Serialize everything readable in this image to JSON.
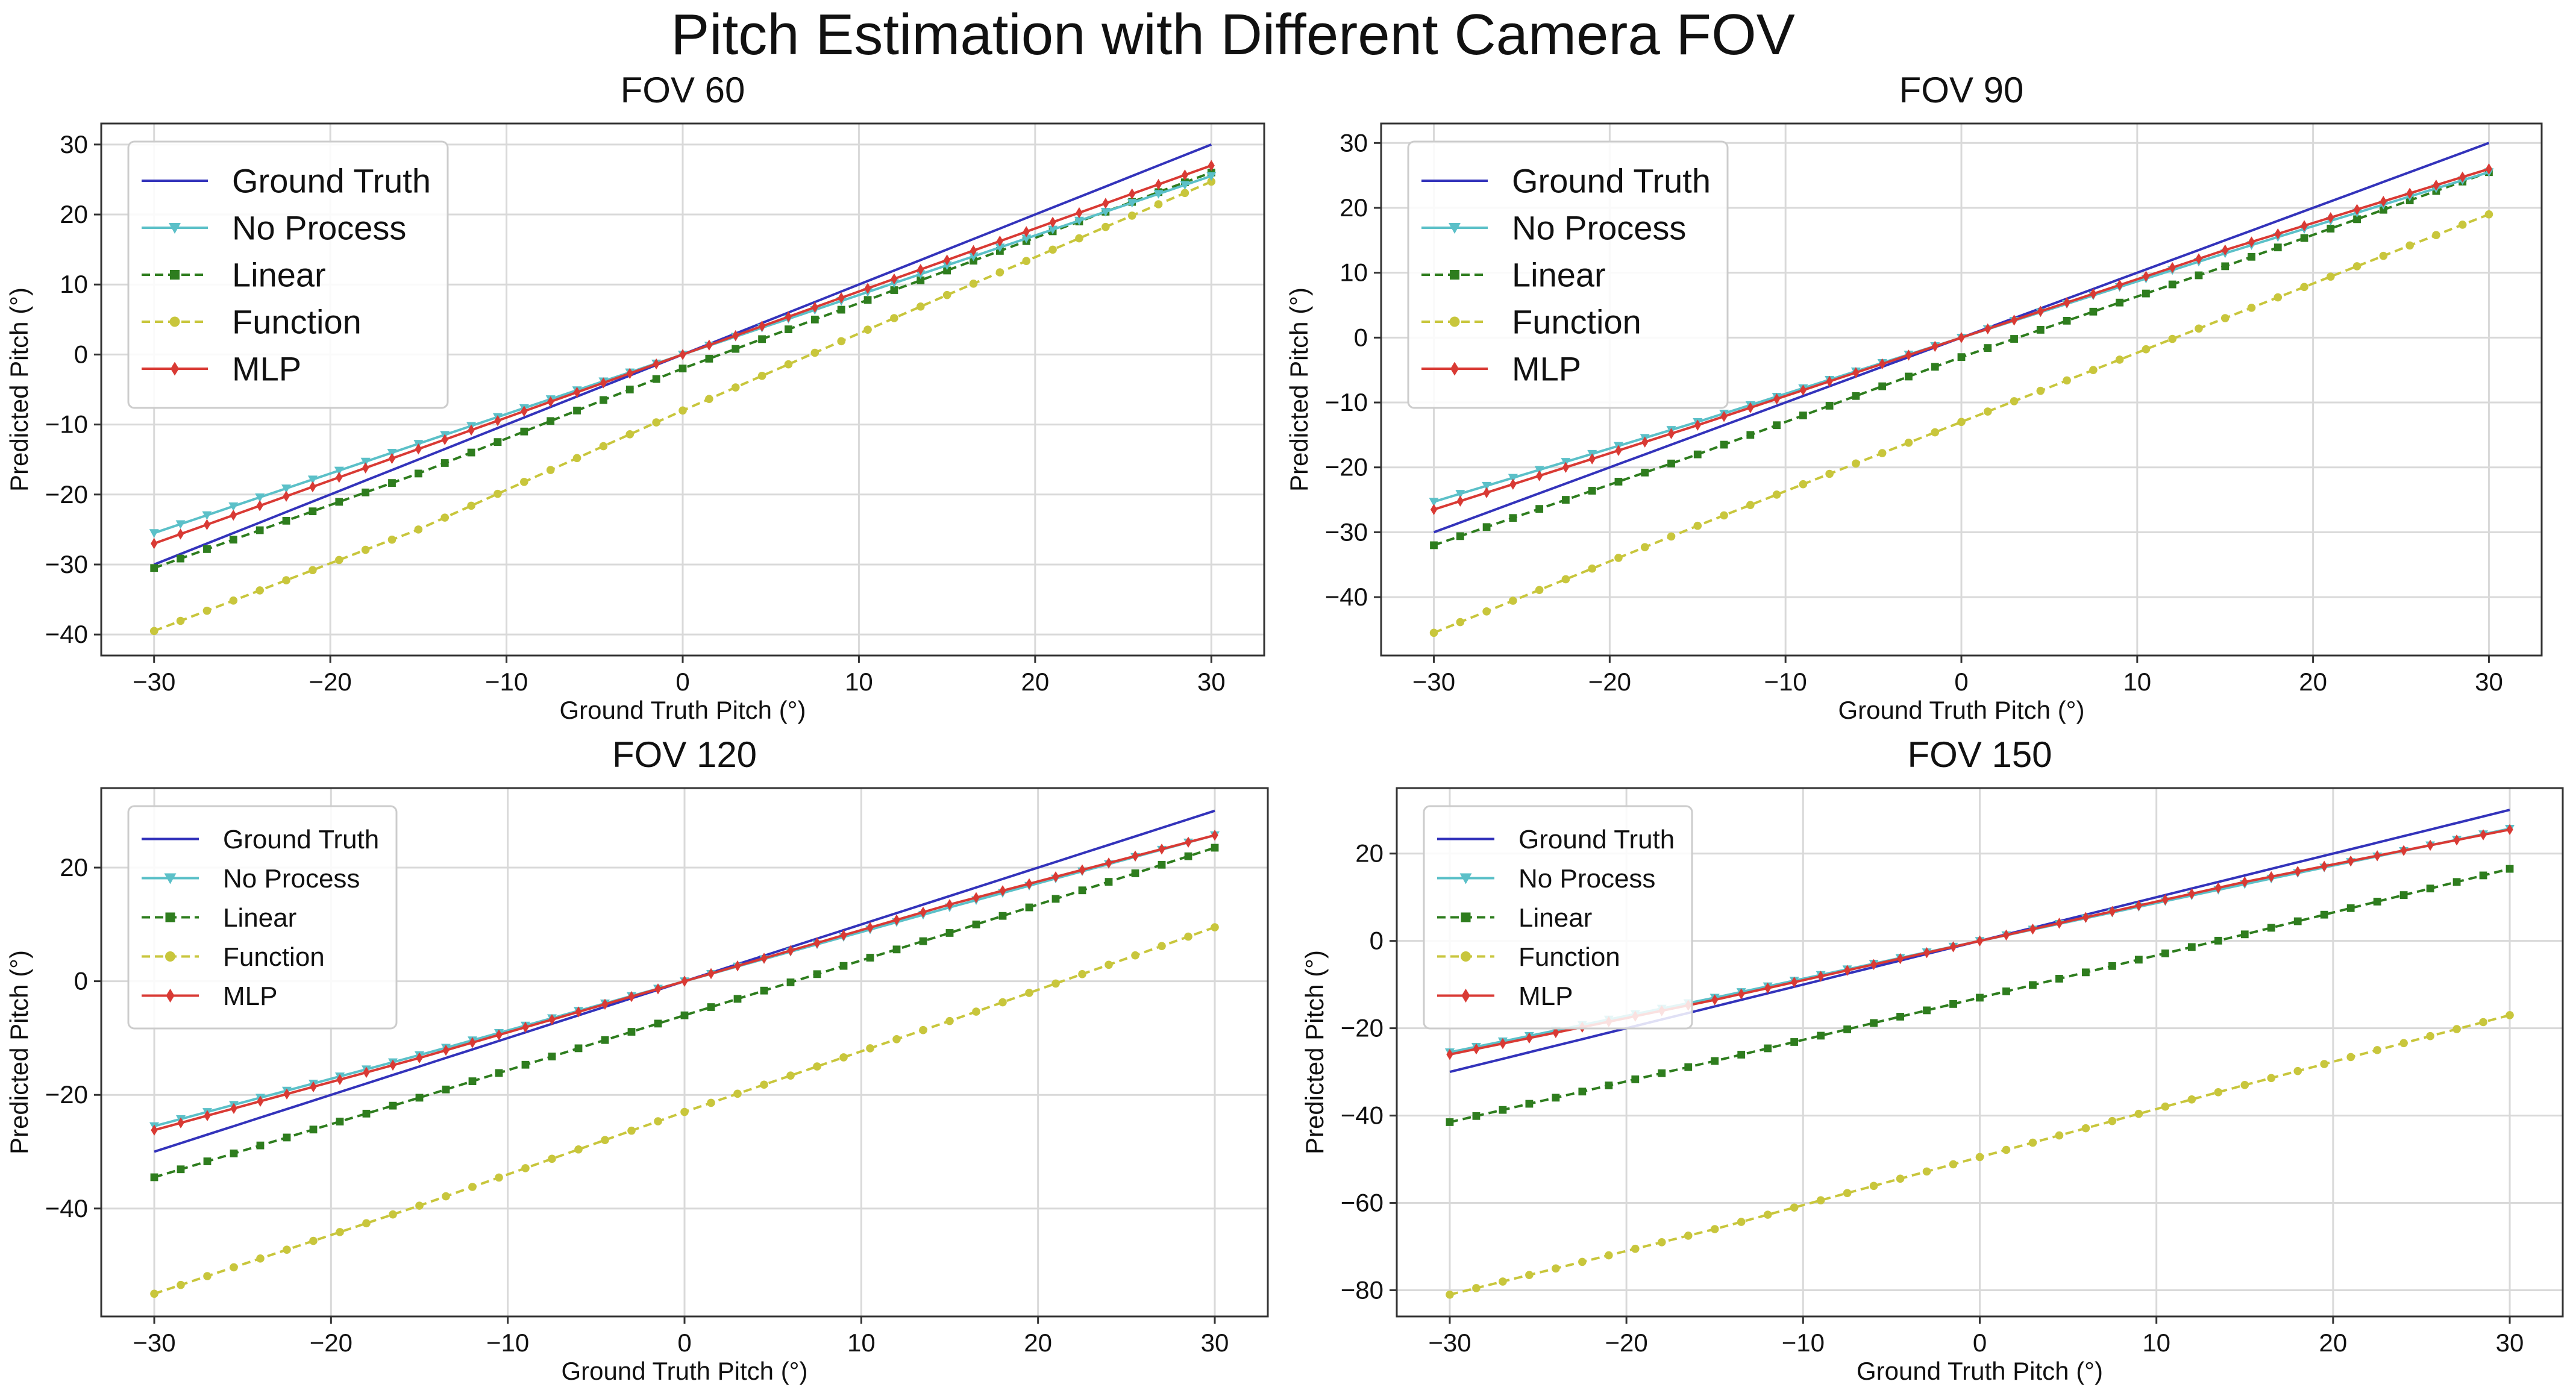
{
  "suptitle": "Pitch Estimation with Different Camera FOV",
  "colors": {
    "ground_truth": "#3333bb",
    "no_process": "#5bc0c8",
    "linear": "#2e7d1e",
    "function": "#c8c63c",
    "mlp": "#d93a34",
    "grid": "#d9d9d9",
    "axes": "#333333"
  },
  "chart_data": [
    {
      "type": "line",
      "title": "FOV 60",
      "xlabel": "Ground Truth Pitch (°)",
      "ylabel": "Predicted Pitch (°)",
      "xlim": [
        -33,
        33
      ],
      "ylim": [
        -43,
        33
      ],
      "xticks": [
        -30,
        -20,
        -10,
        0,
        10,
        20,
        30
      ],
      "yticks": [
        -40,
        -30,
        -20,
        -10,
        0,
        10,
        20,
        30
      ],
      "grid": true,
      "legend_position": "upper-left",
      "legend_size": "large",
      "x": {
        "start": -30,
        "end": 30,
        "step": 1.5
      },
      "series": [
        {
          "name": "Ground Truth",
          "key": "ground_truth",
          "marker": "none",
          "dash": "solid",
          "y_at_anchors": [
            [
              -30,
              -30
            ],
            [
              0,
              0
            ],
            [
              30,
              30
            ]
          ]
        },
        {
          "name": "No Process",
          "key": "no_process",
          "marker": "triangle-down",
          "dash": "solid",
          "y_at_anchors": [
            [
              -30,
              -25.5
            ],
            [
              0,
              0
            ],
            [
              30,
              25.5
            ]
          ]
        },
        {
          "name": "Linear",
          "key": "linear",
          "marker": "square",
          "dash": "dashed",
          "y_at_anchors": [
            [
              -30,
              -30.5
            ],
            [
              -15,
              -17
            ],
            [
              0,
              -2
            ],
            [
              15,
              12
            ],
            [
              30,
              26
            ]
          ]
        },
        {
          "name": "Function",
          "key": "function",
          "marker": "circle",
          "dash": "dashed",
          "y_at_anchors": [
            [
              -30,
              -39.5
            ],
            [
              -15,
              -25
            ],
            [
              0,
              -8
            ],
            [
              15,
              8.5
            ],
            [
              30,
              24.7
            ]
          ]
        },
        {
          "name": "MLP",
          "key": "mlp",
          "marker": "diamond",
          "dash": "solid",
          "y_at_anchors": [
            [
              -30,
              -27
            ],
            [
              -15,
              -13.5
            ],
            [
              0,
              0
            ],
            [
              15,
              13.5
            ],
            [
              30,
              27
            ]
          ]
        }
      ]
    },
    {
      "type": "line",
      "title": "FOV 90",
      "xlabel": "Ground Truth Pitch (°)",
      "ylabel": "Predicted Pitch (°)",
      "xlim": [
        -33,
        33
      ],
      "ylim": [
        -49,
        33
      ],
      "xticks": [
        -30,
        -20,
        -10,
        0,
        10,
        20,
        30
      ],
      "yticks": [
        -40,
        -30,
        -20,
        -10,
        0,
        10,
        20,
        30
      ],
      "grid": true,
      "legend_position": "upper-left",
      "legend_size": "large",
      "x": {
        "start": -30,
        "end": 30,
        "step": 1.5
      },
      "series": [
        {
          "name": "Ground Truth",
          "key": "ground_truth",
          "marker": "none",
          "dash": "solid",
          "y_at_anchors": [
            [
              -30,
              -30
            ],
            [
              0,
              0
            ],
            [
              30,
              30
            ]
          ]
        },
        {
          "name": "No Process",
          "key": "no_process",
          "marker": "triangle-down",
          "dash": "solid",
          "y_at_anchors": [
            [
              -30,
              -25.3
            ],
            [
              -15,
              -13
            ],
            [
              0,
              0
            ],
            [
              15,
              13
            ],
            [
              30,
              25.5
            ]
          ]
        },
        {
          "name": "Linear",
          "key": "linear",
          "marker": "square",
          "dash": "dashed",
          "y_at_anchors": [
            [
              -30,
              -32
            ],
            [
              -15,
              -18
            ],
            [
              0,
              -3
            ],
            [
              15,
              11
            ],
            [
              30,
              25.5
            ]
          ]
        },
        {
          "name": "Function",
          "key": "function",
          "marker": "circle",
          "dash": "dashed",
          "y_at_anchors": [
            [
              -30,
              -45.5
            ],
            [
              -15,
              -29
            ],
            [
              0,
              -13
            ],
            [
              15,
              3
            ],
            [
              30,
              19
            ]
          ]
        },
        {
          "name": "MLP",
          "key": "mlp",
          "marker": "diamond",
          "dash": "solid",
          "y_at_anchors": [
            [
              -30,
              -26.5
            ],
            [
              -15,
              -13.5
            ],
            [
              0,
              0
            ],
            [
              15,
              13.5
            ],
            [
              30,
              26
            ]
          ]
        }
      ]
    },
    {
      "type": "line",
      "title": "FOV 120",
      "xlabel": "Ground Truth Pitch (°)",
      "ylabel": "Predicted Pitch (°)",
      "xlim": [
        -33,
        33
      ],
      "ylim": [
        -59,
        34
      ],
      "xticks": [
        -30,
        -20,
        -10,
        0,
        10,
        20,
        30
      ],
      "yticks": [
        -40,
        -20,
        0,
        20
      ],
      "grid": true,
      "legend_position": "upper-left",
      "legend_size": "medium",
      "x": {
        "start": -30,
        "end": 30,
        "step": 1.5
      },
      "series": [
        {
          "name": "Ground Truth",
          "key": "ground_truth",
          "marker": "none",
          "dash": "solid",
          "y_at_anchors": [
            [
              -30,
              -30
            ],
            [
              0,
              0
            ],
            [
              30,
              30
            ]
          ]
        },
        {
          "name": "No Process",
          "key": "no_process",
          "marker": "triangle-down",
          "dash": "solid",
          "y_at_anchors": [
            [
              -30,
              -25.5
            ],
            [
              -15,
              -13
            ],
            [
              0,
              0
            ],
            [
              15,
              13
            ],
            [
              30,
              25.7
            ]
          ]
        },
        {
          "name": "Linear",
          "key": "linear",
          "marker": "square",
          "dash": "dashed",
          "y_at_anchors": [
            [
              -30,
              -34.5
            ],
            [
              -15,
              -20.5
            ],
            [
              0,
              -6
            ],
            [
              15,
              8.5
            ],
            [
              30,
              23.5
            ]
          ]
        },
        {
          "name": "Function",
          "key": "function",
          "marker": "circle",
          "dash": "dashed",
          "y_at_anchors": [
            [
              -30,
              -55
            ],
            [
              -15,
              -39.5
            ],
            [
              0,
              -23
            ],
            [
              15,
              -7
            ],
            [
              30,
              9.5
            ]
          ]
        },
        {
          "name": "MLP",
          "key": "mlp",
          "marker": "diamond",
          "dash": "solid",
          "y_at_anchors": [
            [
              -30,
              -26.2
            ],
            [
              -15,
              -13.5
            ],
            [
              0,
              0
            ],
            [
              15,
              13.5
            ],
            [
              30,
              25.7
            ]
          ]
        }
      ]
    },
    {
      "type": "line",
      "title": "FOV 150",
      "xlabel": "Ground Truth Pitch (°)",
      "ylabel": "Predicted Pitch (°)",
      "xlim": [
        -33,
        33
      ],
      "ylim": [
        -86,
        35
      ],
      "xticks": [
        -30,
        -20,
        -10,
        0,
        10,
        20,
        30
      ],
      "yticks": [
        -80,
        -60,
        -40,
        -20,
        0,
        20
      ],
      "grid": true,
      "legend_position": "upper-left",
      "legend_size": "medium",
      "x": {
        "start": -30,
        "end": 30,
        "step": 1.5
      },
      "series": [
        {
          "name": "Ground Truth",
          "key": "ground_truth",
          "marker": "none",
          "dash": "solid",
          "y_at_anchors": [
            [
              -30,
              -30
            ],
            [
              0,
              0
            ],
            [
              30,
              30
            ]
          ]
        },
        {
          "name": "No Process",
          "key": "no_process",
          "marker": "triangle-down",
          "dash": "solid",
          "y_at_anchors": [
            [
              -30,
              -25.5
            ],
            [
              -15,
              -13
            ],
            [
              0,
              0
            ],
            [
              15,
              13
            ],
            [
              30,
              25.7
            ]
          ]
        },
        {
          "name": "Linear",
          "key": "linear",
          "marker": "square",
          "dash": "dashed",
          "y_at_anchors": [
            [
              -30,
              -41.5
            ],
            [
              -15,
              -27.5
            ],
            [
              0,
              -13
            ],
            [
              15,
              1.5
            ],
            [
              30,
              16.5
            ]
          ]
        },
        {
          "name": "Function",
          "key": "function",
          "marker": "circle",
          "dash": "dashed",
          "y_at_anchors": [
            [
              -30,
              -81
            ],
            [
              -15,
              -66
            ],
            [
              0,
              -49.5
            ],
            [
              15,
              -33
            ],
            [
              30,
              -17
            ]
          ]
        },
        {
          "name": "MLP",
          "key": "mlp",
          "marker": "diamond",
          "dash": "solid",
          "y_at_anchors": [
            [
              -30,
              -26
            ],
            [
              -15,
              -13.5
            ],
            [
              0,
              0
            ],
            [
              15,
              13.5
            ],
            [
              30,
              25.5
            ]
          ]
        }
      ]
    }
  ]
}
